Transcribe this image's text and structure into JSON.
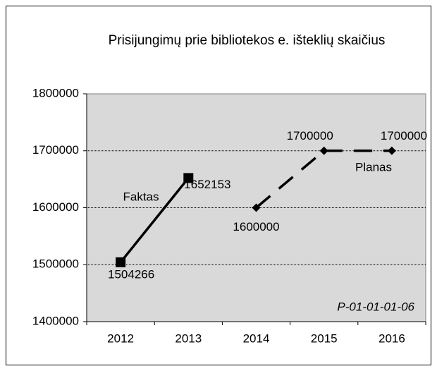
{
  "chart_data": {
    "type": "line",
    "title": "Prisijungimų prie bibliotekos e. išteklių skaičius",
    "categories": [
      "2012",
      "2013",
      "2014",
      "2015",
      "2016"
    ],
    "series": [
      {
        "name": "Faktas",
        "color": "#000000",
        "line_style": "solid",
        "marker": "square",
        "values": [
          1504266,
          1652153,
          null,
          null,
          null
        ]
      },
      {
        "name": "Planas",
        "color": "#000000",
        "line_style": "dashed",
        "marker": "diamond",
        "values": [
          null,
          null,
          1600000,
          1700000,
          1700000
        ]
      }
    ],
    "ylim": [
      1400000,
      1800000
    ],
    "yticks": [
      1400000,
      1500000,
      1600000,
      1700000,
      1800000
    ],
    "grid": true,
    "annotation": "P-01-01-01-06"
  }
}
